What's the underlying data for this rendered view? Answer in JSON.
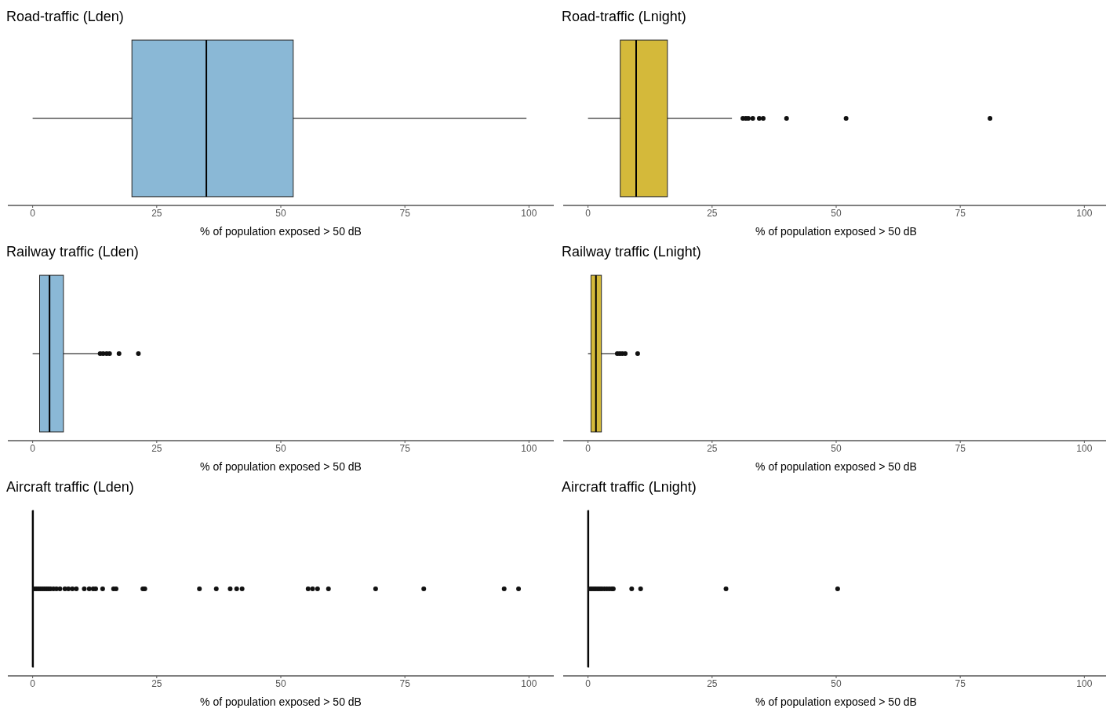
{
  "chart_data": [
    {
      "type": "box",
      "orientation": "horizontal",
      "title": "Road-traffic (Lden)",
      "xlabel": "% of population exposed > 50 dB",
      "categories": [
        null
      ],
      "color": "#8ab8d6",
      "xlim": [
        -5,
        105
      ],
      "xticks": [
        0,
        25,
        50,
        75,
        100
      ],
      "tick_labels": "x",
      "boxes": [
        {
          "low": 0,
          "q1": 20,
          "median": 35,
          "q3": 52.5,
          "high": 99.5
        }
      ]
    },
    {
      "type": "box",
      "orientation": "horizontal",
      "title": "Road-traffic (Lnight)",
      "xlabel": "% of population exposed > 50 dB",
      "categories": [
        null
      ],
      "color": "#d4b93a",
      "xlim": [
        -5,
        105
      ],
      "xticks": [
        0,
        25,
        50,
        75,
        100
      ],
      "tick_labels": "x",
      "boxes": [
        {
          "low": 0,
          "q1": 6.5,
          "median": 9.7,
          "q3": 16,
          "high": 29,
          "outliers": [
            31.2,
            31.8,
            32.3,
            33.2,
            34.5,
            35.3,
            40,
            52,
            81
          ]
        }
      ]
    },
    {
      "type": "box",
      "orientation": "horizontal",
      "title": "Railway traffic (Lden)",
      "xlabel": "% of population exposed > 50 dB",
      "categories": [
        null
      ],
      "color": "#8ab8d6",
      "xlim": [
        -5,
        105
      ],
      "xticks": [
        0,
        25,
        50,
        75,
        100
      ],
      "tick_labels": "x",
      "boxes": [
        {
          "low": 0,
          "q1": 1.4,
          "median": 3.4,
          "q3": 6.2,
          "high": 13.3,
          "outliers": [
            13.6,
            14.2,
            14.9,
            15.5,
            17.4,
            21.3
          ]
        }
      ]
    },
    {
      "type": "box",
      "orientation": "horizontal",
      "title": "Railway traffic (Lnight)",
      "xlabel": "% of population exposed > 50 dB",
      "categories": [
        null
      ],
      "color": "#d4b93a",
      "xlim": [
        -5,
        105
      ],
      "xticks": [
        0,
        25,
        50,
        75,
        100
      ],
      "tick_labels": "x",
      "boxes": [
        {
          "low": 0,
          "q1": 0.6,
          "median": 1.6,
          "q3": 2.7,
          "high": 5.6,
          "outliers": [
            5.9,
            6.4,
            6.9,
            7.5,
            10
          ]
        }
      ]
    },
    {
      "type": "box",
      "orientation": "horizontal",
      "title": "Aircraft traffic (Lden)",
      "xlabel": "% of population exposed > 50 dB",
      "categories": [
        null
      ],
      "color": "#8ab8d6",
      "xlim": [
        -5,
        105
      ],
      "xticks": [
        0,
        25,
        50,
        75,
        100
      ],
      "tick_labels": "x",
      "boxes": [
        {
          "low": 0,
          "q1": 0,
          "median": 0,
          "q3": 0,
          "high": 0,
          "outliers": [
            0.4,
            0.8,
            1.2,
            1.6,
            2,
            2.4,
            2.8,
            3.2,
            3.6,
            4.2,
            4.8,
            5.5,
            6.5,
            7.2,
            8,
            8.8,
            10.4,
            11.4,
            12.2,
            12.7,
            14.1,
            16.3,
            16.8,
            22.2,
            22.6,
            33.6,
            37,
            39.8,
            41.1,
            42.2,
            55.5,
            56.4,
            57.4,
            59.6,
            69.1,
            78.8,
            95,
            97.9
          ]
        }
      ]
    },
    {
      "type": "box",
      "orientation": "horizontal",
      "title": "Aircraft traffic (Lnight)",
      "xlabel": "% of population exposed > 50 dB",
      "categories": [
        null
      ],
      "color": "#d4b93a",
      "xlim": [
        -5,
        105
      ],
      "xticks": [
        0,
        25,
        50,
        75,
        100
      ],
      "tick_labels": "x",
      "boxes": [
        {
          "low": 0,
          "q1": 0,
          "median": 0,
          "q3": 0,
          "high": 0,
          "outliers": [
            0.4,
            0.8,
            1.2,
            1.6,
            2,
            2.4,
            2.8,
            3.3,
            3.8,
            4.3,
            4.8,
            5.1,
            8.8,
            10.6,
            27.8,
            50.3
          ]
        }
      ]
    }
  ]
}
